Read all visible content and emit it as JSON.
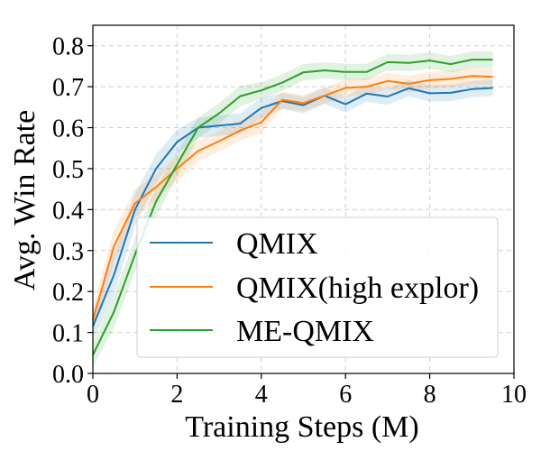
{
  "chart_data": {
    "type": "line",
    "title": "",
    "xlabel": "Training Steps (M)",
    "ylabel": "Avg. Win Rate",
    "xlim": [
      0,
      10
    ],
    "ylim": [
      0,
      0.85
    ],
    "xticks": [
      0,
      2,
      4,
      6,
      8,
      10
    ],
    "xtick_labels": [
      "0",
      "2",
      "4",
      "6",
      "8",
      "10"
    ],
    "yticks": [
      0.0,
      0.1,
      0.2,
      0.3,
      0.4,
      0.5,
      0.6,
      0.7,
      0.8
    ],
    "ytick_labels": [
      "0.0",
      "0.1",
      "0.2",
      "0.3",
      "0.4",
      "0.5",
      "0.6",
      "0.7",
      "0.8"
    ],
    "grid": true,
    "legend_position": "bottom-right",
    "x": [
      0,
      0.5,
      1,
      1.5,
      2,
      2.5,
      3,
      3.5,
      4,
      4.5,
      5,
      5.5,
      6,
      6.5,
      7,
      7.5,
      8,
      8.5,
      9,
      9.5
    ],
    "series": [
      {
        "name": "QMIX",
        "color": "#1f77b4",
        "values": [
          0.115,
          0.24,
          0.4,
          0.5,
          0.565,
          0.6,
          0.605,
          0.61,
          0.648,
          0.665,
          0.655,
          0.678,
          0.657,
          0.683,
          0.676,
          0.696,
          0.684,
          0.685,
          0.694,
          0.697
        ],
        "band": [
          0.035,
          0.05,
          0.04,
          0.035,
          0.03,
          0.025,
          0.025,
          0.025,
          0.025,
          0.02,
          0.02,
          0.02,
          0.02,
          0.02,
          0.02,
          0.02,
          0.02,
          0.02,
          0.02,
          0.02
        ]
      },
      {
        "name": "QMIX(high explor)",
        "color": "#ff7f0e",
        "values": [
          0.13,
          0.31,
          0.415,
          0.455,
          0.5,
          0.543,
          0.567,
          0.593,
          0.613,
          0.668,
          0.66,
          0.678,
          0.697,
          0.7,
          0.714,
          0.707,
          0.716,
          0.719,
          0.726,
          0.724
        ],
        "band": [
          0.03,
          0.04,
          0.035,
          0.03,
          0.03,
          0.025,
          0.025,
          0.025,
          0.025,
          0.02,
          0.02,
          0.02,
          0.02,
          0.02,
          0.02,
          0.02,
          0.02,
          0.02,
          0.02,
          0.02
        ]
      },
      {
        "name": "ME-QMIX",
        "color": "#2ca02c",
        "values": [
          0.045,
          0.15,
          0.29,
          0.42,
          0.51,
          0.6,
          0.635,
          0.677,
          0.691,
          0.71,
          0.735,
          0.74,
          0.736,
          0.736,
          0.76,
          0.758,
          0.764,
          0.755,
          0.766,
          0.766
        ],
        "band": [
          0.03,
          0.04,
          0.04,
          0.035,
          0.03,
          0.025,
          0.025,
          0.025,
          0.02,
          0.02,
          0.02,
          0.02,
          0.02,
          0.02,
          0.02,
          0.02,
          0.02,
          0.02,
          0.02,
          0.02
        ]
      }
    ]
  }
}
